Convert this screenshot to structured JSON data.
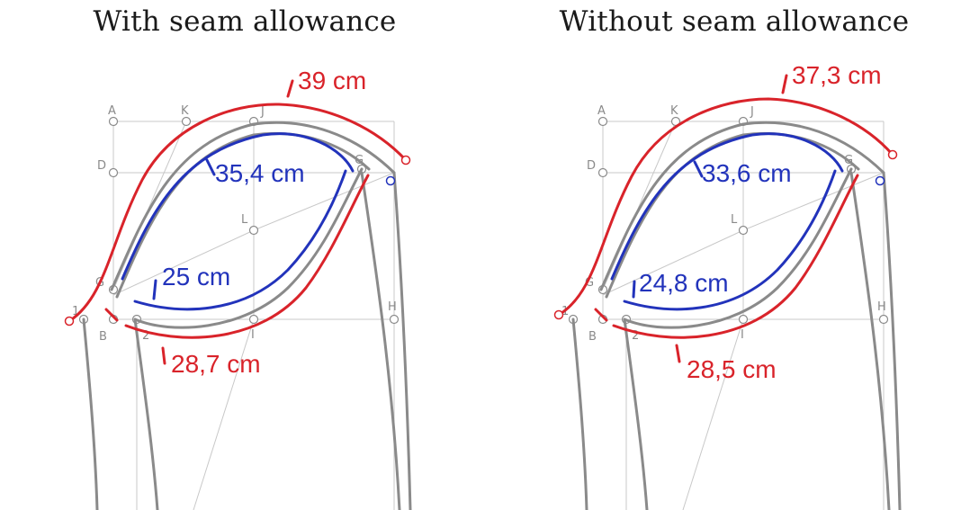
{
  "titles": {
    "left": "With seam allowance",
    "right": "Without seam allowance"
  },
  "point_labels": [
    "A",
    "K",
    "J",
    "D",
    "L",
    "G",
    "H",
    "B",
    "1",
    "2",
    "I"
  ],
  "left": {
    "top_red": "39 cm",
    "top_blue": "35,4 cm",
    "bottom_blue": "25 cm",
    "bottom_red": "28,7 cm"
  },
  "right": {
    "top_red": "37,3 cm",
    "top_blue": "33,6 cm",
    "bottom_blue": "24,8 cm",
    "bottom_red": "28,5 cm"
  },
  "colors": {
    "red": "#d9232a",
    "blue": "#2233bb",
    "gray": "#8a8a8a",
    "grid": "#c8c8c8"
  }
}
